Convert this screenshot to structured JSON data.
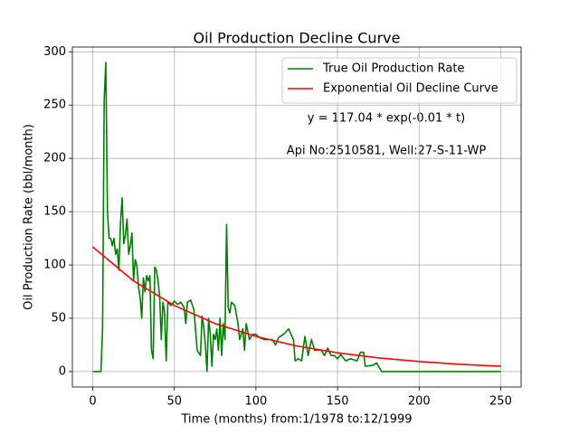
{
  "chart_data": {
    "type": "line",
    "title": "Oil Production Decline Curve",
    "xlabel": "Time (months) from:1/1978 to:12/1999",
    "ylabel": "Oil Production Rate (bbl/month)",
    "annotations": [
      "y = 117.04 * exp(-0.01 * t)",
      "Api No:2510581, Well:27-S-11-WP"
    ],
    "legend": "upper right",
    "grid": true,
    "xlim": [
      -12.5,
      262.5
    ],
    "ylim": [
      -14.5,
      304.5
    ],
    "xticks": [
      0,
      50,
      100,
      150,
      200,
      250
    ],
    "yticks": [
      0,
      50,
      100,
      150,
      200,
      250,
      300
    ],
    "series": [
      {
        "name": "True Oil Production Rate",
        "color": "#008000",
        "x": [
          0,
          5,
          6,
          7,
          8,
          9,
          10,
          11,
          12,
          13,
          14,
          15,
          16,
          17,
          18,
          19,
          20,
          21,
          22,
          23,
          24,
          25,
          26,
          27,
          28,
          29,
          30,
          31,
          32,
          33,
          34,
          35,
          36,
          37,
          38,
          39,
          40,
          41,
          42,
          43,
          44,
          45,
          46,
          48,
          50,
          52,
          54,
          56,
          57,
          58,
          60,
          62,
          64,
          66,
          67,
          68,
          69,
          70,
          71,
          72,
          73,
          74,
          75,
          76,
          77,
          78,
          79,
          80,
          81,
          82,
          83,
          84,
          85,
          87,
          89,
          90,
          92,
          93,
          94,
          96,
          98,
          100,
          102,
          105,
          110,
          112,
          114,
          117,
          120,
          123,
          124,
          126,
          128,
          130,
          132,
          134,
          136,
          140,
          142,
          144,
          146,
          148,
          150,
          152,
          155,
          158,
          162,
          164,
          166,
          167,
          172,
          174,
          177,
          250
        ],
        "values": [
          0,
          0,
          40,
          255,
          290,
          150,
          125,
          125,
          118,
          125,
          110,
          115,
          95,
          140,
          163,
          120,
          128,
          143,
          110,
          118,
          130,
          85,
          105,
          100,
          80,
          70,
          50,
          88,
          75,
          90,
          85,
          90,
          20,
          12,
          98,
          95,
          85,
          70,
          30,
          65,
          55,
          10,
          65,
          62,
          66,
          63,
          65,
          60,
          45,
          65,
          67,
          58,
          20,
          15,
          52,
          42,
          25,
          0,
          50,
          35,
          5,
          35,
          30,
          40,
          20,
          50,
          15,
          45,
          30,
          138,
          60,
          55,
          65,
          62,
          45,
          30,
          40,
          20,
          45,
          30,
          35,
          35,
          32,
          30,
          30,
          25,
          32,
          35,
          40,
          30,
          10,
          12,
          10,
          33,
          15,
          30,
          20,
          20,
          15,
          22,
          15,
          15,
          12,
          16,
          10,
          12,
          10,
          18,
          18,
          5,
          6,
          8,
          0,
          0
        ]
      },
      {
        "name": "Exponential Oil Decline Curve",
        "color": "#ff0000",
        "x": [
          0,
          25,
          50,
          75,
          100,
          125,
          150,
          175,
          200,
          225,
          250
        ],
        "values": [
          117,
          85,
          62,
          45,
          33,
          24,
          17.6,
          12.8,
          9.4,
          6.8,
          5
        ]
      }
    ]
  }
}
